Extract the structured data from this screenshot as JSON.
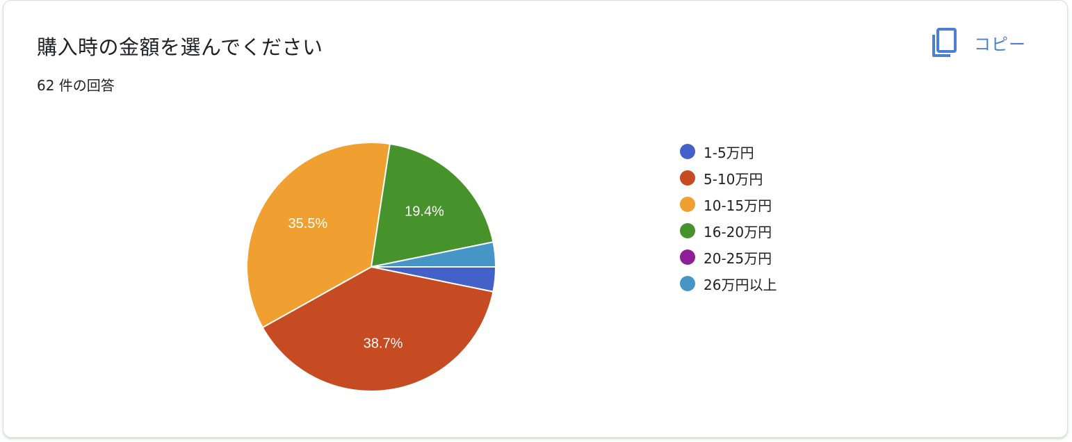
{
  "card": {
    "title": "購入時の金額を選んでください",
    "response_count": "62 件の回答",
    "copy_label": "コピー",
    "copy_icon": "copy-icon",
    "accent_color": "#4a7fd4"
  },
  "chart_data": {
    "type": "pie",
    "categories": [
      "1-5万円",
      "5-10万円",
      "10-15万円",
      "16-20万円",
      "20-25万円",
      "26万円以上"
    ],
    "values": [
      3.2,
      38.7,
      35.5,
      19.4,
      0,
      3.2
    ],
    "colors": [
      "#4361c9",
      "#c64b22",
      "#f0a030",
      "#46932b",
      "#8e1f98",
      "#4596c6"
    ],
    "data_labels": [
      "",
      "38.7%",
      "35.5%",
      "19.4%",
      "",
      ""
    ],
    "legend_position": "right",
    "start": "3 o'clock",
    "direction": "clockwise"
  }
}
